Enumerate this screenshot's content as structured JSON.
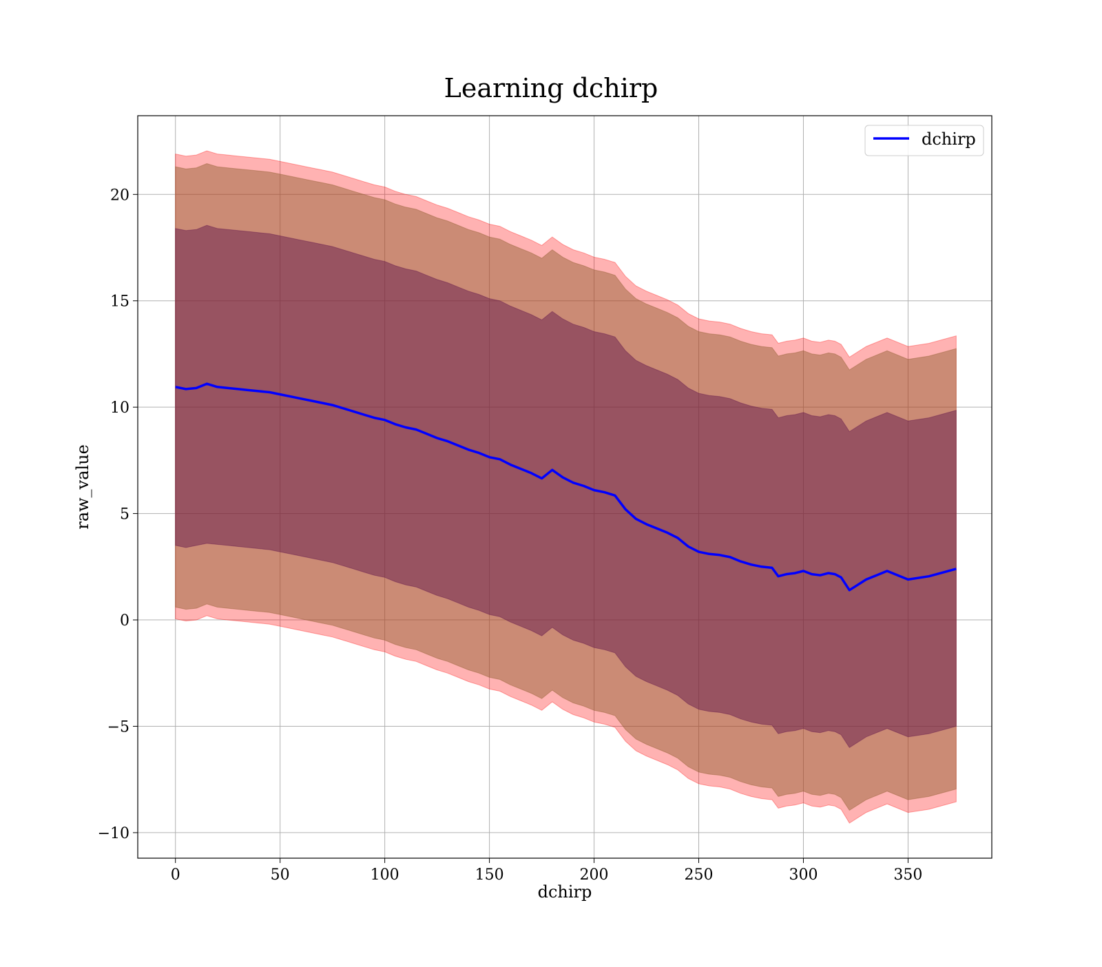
{
  "chart_data": {
    "type": "line",
    "title": "Learning dchirp",
    "xlabel": "dchirp",
    "ylabel": "raw_value",
    "xlim": [
      -18,
      390
    ],
    "ylim": [
      -11.2,
      23.7
    ],
    "xticks": [
      0,
      50,
      100,
      150,
      200,
      250,
      300,
      350
    ],
    "yticks": [
      -10,
      -5,
      0,
      5,
      10,
      15,
      20
    ],
    "xtick_labels": [
      "0",
      "50",
      "100",
      "150",
      "200",
      "250",
      "300",
      "350"
    ],
    "ytick_labels": [
      "−10",
      "−5",
      "0",
      "5",
      "10",
      "15",
      "20"
    ],
    "grid": true,
    "legend": {
      "position": "top-right",
      "entries": [
        "dchirp"
      ]
    },
    "series": [
      {
        "name": "dchirp",
        "color": "#0000ff",
        "x": [
          0,
          5,
          10,
          15,
          20,
          25,
          30,
          35,
          40,
          45,
          50,
          55,
          60,
          65,
          70,
          75,
          80,
          85,
          90,
          95,
          100,
          105,
          110,
          115,
          120,
          125,
          130,
          135,
          140,
          145,
          150,
          155,
          160,
          165,
          170,
          175,
          180,
          185,
          190,
          195,
          200,
          205,
          210,
          215,
          220,
          225,
          230,
          235,
          240,
          245,
          250,
          255,
          260,
          265,
          270,
          275,
          280,
          285,
          288,
          292,
          296,
          300,
          304,
          308,
          312,
          315,
          318,
          322,
          330,
          340,
          350,
          360,
          373
        ],
        "y": [
          10.95,
          10.85,
          10.9,
          11.1,
          10.95,
          10.9,
          10.85,
          10.8,
          10.75,
          10.7,
          10.6,
          10.5,
          10.4,
          10.3,
          10.2,
          10.1,
          9.95,
          9.8,
          9.65,
          9.5,
          9.4,
          9.2,
          9.05,
          8.95,
          8.75,
          8.55,
          8.4,
          8.2,
          8.0,
          7.85,
          7.65,
          7.55,
          7.3,
          7.1,
          6.9,
          6.65,
          7.05,
          6.7,
          6.45,
          6.3,
          6.1,
          6.0,
          5.85,
          5.2,
          4.75,
          4.5,
          4.3,
          4.1,
          3.85,
          3.45,
          3.2,
          3.1,
          3.05,
          2.95,
          2.75,
          2.6,
          2.5,
          2.45,
          2.05,
          2.15,
          2.2,
          2.3,
          2.15,
          2.1,
          2.2,
          2.15,
          2.0,
          1.4,
          1.9,
          2.3,
          1.9,
          2.05,
          2.4
        ],
        "inner_lower": [
          3.5,
          3.4,
          3.5,
          3.6,
          3.55,
          3.5,
          3.45,
          3.4,
          3.35,
          3.3,
          3.2,
          3.1,
          3.0,
          2.9,
          2.8,
          2.7,
          2.55,
          2.4,
          2.25,
          2.1,
          2.0,
          1.8,
          1.65,
          1.55,
          1.35,
          1.15,
          1.0,
          0.8,
          0.6,
          0.45,
          0.25,
          0.15,
          -0.1,
          -0.3,
          -0.5,
          -0.75,
          -0.35,
          -0.7,
          -0.95,
          -1.1,
          -1.3,
          -1.4,
          -1.55,
          -2.2,
          -2.65,
          -2.9,
          -3.1,
          -3.3,
          -3.55,
          -3.95,
          -4.2,
          -4.3,
          -4.35,
          -4.45,
          -4.65,
          -4.8,
          -4.9,
          -4.95,
          -5.35,
          -5.25,
          -5.2,
          -5.1,
          -5.25,
          -5.3,
          -5.2,
          -5.25,
          -5.4,
          -6.0,
          -5.5,
          -5.1,
          -5.5,
          -5.35,
          -5.0
        ],
        "inner_upper": [
          18.4,
          18.3,
          18.35,
          18.55,
          18.4,
          18.35,
          18.3,
          18.25,
          18.2,
          18.15,
          18.05,
          17.95,
          17.85,
          17.75,
          17.65,
          17.55,
          17.4,
          17.25,
          17.1,
          16.95,
          16.85,
          16.65,
          16.5,
          16.4,
          16.2,
          16.0,
          15.85,
          15.65,
          15.45,
          15.3,
          15.1,
          15.0,
          14.75,
          14.55,
          14.35,
          14.1,
          14.5,
          14.15,
          13.9,
          13.75,
          13.55,
          13.45,
          13.3,
          12.65,
          12.2,
          11.95,
          11.75,
          11.55,
          11.3,
          10.9,
          10.65,
          10.55,
          10.5,
          10.4,
          10.2,
          10.05,
          9.95,
          9.9,
          9.5,
          9.6,
          9.65,
          9.75,
          9.6,
          9.55,
          9.65,
          9.6,
          9.45,
          8.85,
          9.35,
          9.75,
          9.35,
          9.5,
          9.85
        ],
        "outer_lower": [
          0.6,
          0.5,
          0.55,
          0.75,
          0.6,
          0.55,
          0.5,
          0.45,
          0.4,
          0.35,
          0.25,
          0.15,
          0.05,
          -0.05,
          -0.15,
          -0.25,
          -0.4,
          -0.55,
          -0.7,
          -0.85,
          -0.95,
          -1.15,
          -1.3,
          -1.4,
          -1.6,
          -1.8,
          -1.95,
          -2.15,
          -2.35,
          -2.5,
          -2.7,
          -2.8,
          -3.05,
          -3.25,
          -3.45,
          -3.7,
          -3.3,
          -3.65,
          -3.9,
          -4.05,
          -4.25,
          -4.35,
          -4.5,
          -5.15,
          -5.6,
          -5.85,
          -6.05,
          -6.25,
          -6.5,
          -6.9,
          -7.15,
          -7.25,
          -7.3,
          -7.4,
          -7.6,
          -7.75,
          -7.85,
          -7.9,
          -8.3,
          -8.2,
          -8.15,
          -8.05,
          -8.2,
          -8.25,
          -8.15,
          -8.2,
          -8.35,
          -8.95,
          -8.45,
          -8.05,
          -8.45,
          -8.3,
          -7.95
        ],
        "outer_upper": [
          21.3,
          21.2,
          21.25,
          21.45,
          21.3,
          21.25,
          21.2,
          21.15,
          21.1,
          21.05,
          20.95,
          20.85,
          20.75,
          20.65,
          20.55,
          20.45,
          20.3,
          20.15,
          20.0,
          19.85,
          19.75,
          19.55,
          19.4,
          19.3,
          19.1,
          18.9,
          18.75,
          18.55,
          18.35,
          18.2,
          18.0,
          17.9,
          17.65,
          17.45,
          17.25,
          17.0,
          17.4,
          17.05,
          16.8,
          16.65,
          16.45,
          16.35,
          16.2,
          15.55,
          15.1,
          14.85,
          14.65,
          14.45,
          14.2,
          13.8,
          13.55,
          13.45,
          13.4,
          13.3,
          13.1,
          12.95,
          12.85,
          12.8,
          12.4,
          12.5,
          12.55,
          12.65,
          12.5,
          12.45,
          12.55,
          12.5,
          12.35,
          11.75,
          12.25,
          12.65,
          12.25,
          12.4,
          12.75
        ],
        "min_lower": [
          0.05,
          -0.05,
          0.0,
          0.2,
          0.05,
          0.0,
          -0.05,
          -0.1,
          -0.15,
          -0.2,
          -0.3,
          -0.4,
          -0.5,
          -0.6,
          -0.7,
          -0.8,
          -0.95,
          -1.1,
          -1.25,
          -1.4,
          -1.5,
          -1.7,
          -1.85,
          -1.95,
          -2.15,
          -2.35,
          -2.5,
          -2.7,
          -2.9,
          -3.05,
          -3.25,
          -3.35,
          -3.6,
          -3.8,
          -4.0,
          -4.25,
          -3.85,
          -4.2,
          -4.45,
          -4.6,
          -4.8,
          -4.9,
          -5.05,
          -5.7,
          -6.15,
          -6.4,
          -6.6,
          -6.8,
          -7.05,
          -7.45,
          -7.7,
          -7.8,
          -7.85,
          -7.95,
          -8.15,
          -8.3,
          -8.4,
          -8.45,
          -8.85,
          -8.75,
          -8.7,
          -8.6,
          -8.75,
          -8.8,
          -8.7,
          -8.75,
          -8.9,
          -9.55,
          -9.05,
          -8.65,
          -9.05,
          -8.9,
          -8.55
        ],
        "max_upper": [
          21.9,
          21.8,
          21.85,
          22.05,
          21.9,
          21.85,
          21.8,
          21.75,
          21.7,
          21.65,
          21.55,
          21.45,
          21.35,
          21.25,
          21.15,
          21.05,
          20.9,
          20.75,
          20.6,
          20.45,
          20.35,
          20.15,
          20.0,
          19.9,
          19.7,
          19.5,
          19.35,
          19.15,
          18.95,
          18.8,
          18.6,
          18.5,
          18.25,
          18.05,
          17.85,
          17.6,
          18.0,
          17.65,
          17.4,
          17.25,
          17.05,
          16.95,
          16.8,
          16.15,
          15.7,
          15.45,
          15.25,
          15.05,
          14.8,
          14.4,
          14.15,
          14.05,
          14.0,
          13.9,
          13.7,
          13.55,
          13.45,
          13.4,
          13.0,
          13.1,
          13.15,
          13.25,
          13.1,
          13.05,
          13.15,
          13.1,
          12.95,
          12.35,
          12.85,
          13.25,
          12.85,
          13.0,
          13.35
        ]
      }
    ]
  },
  "colors": {
    "line": "#0000ff",
    "band_max": "#ff0000",
    "band_outer": "#8b5a2b",
    "band_inner": "#5c0f4a",
    "grid": "#b0b0b0",
    "frame": "#000000"
  }
}
